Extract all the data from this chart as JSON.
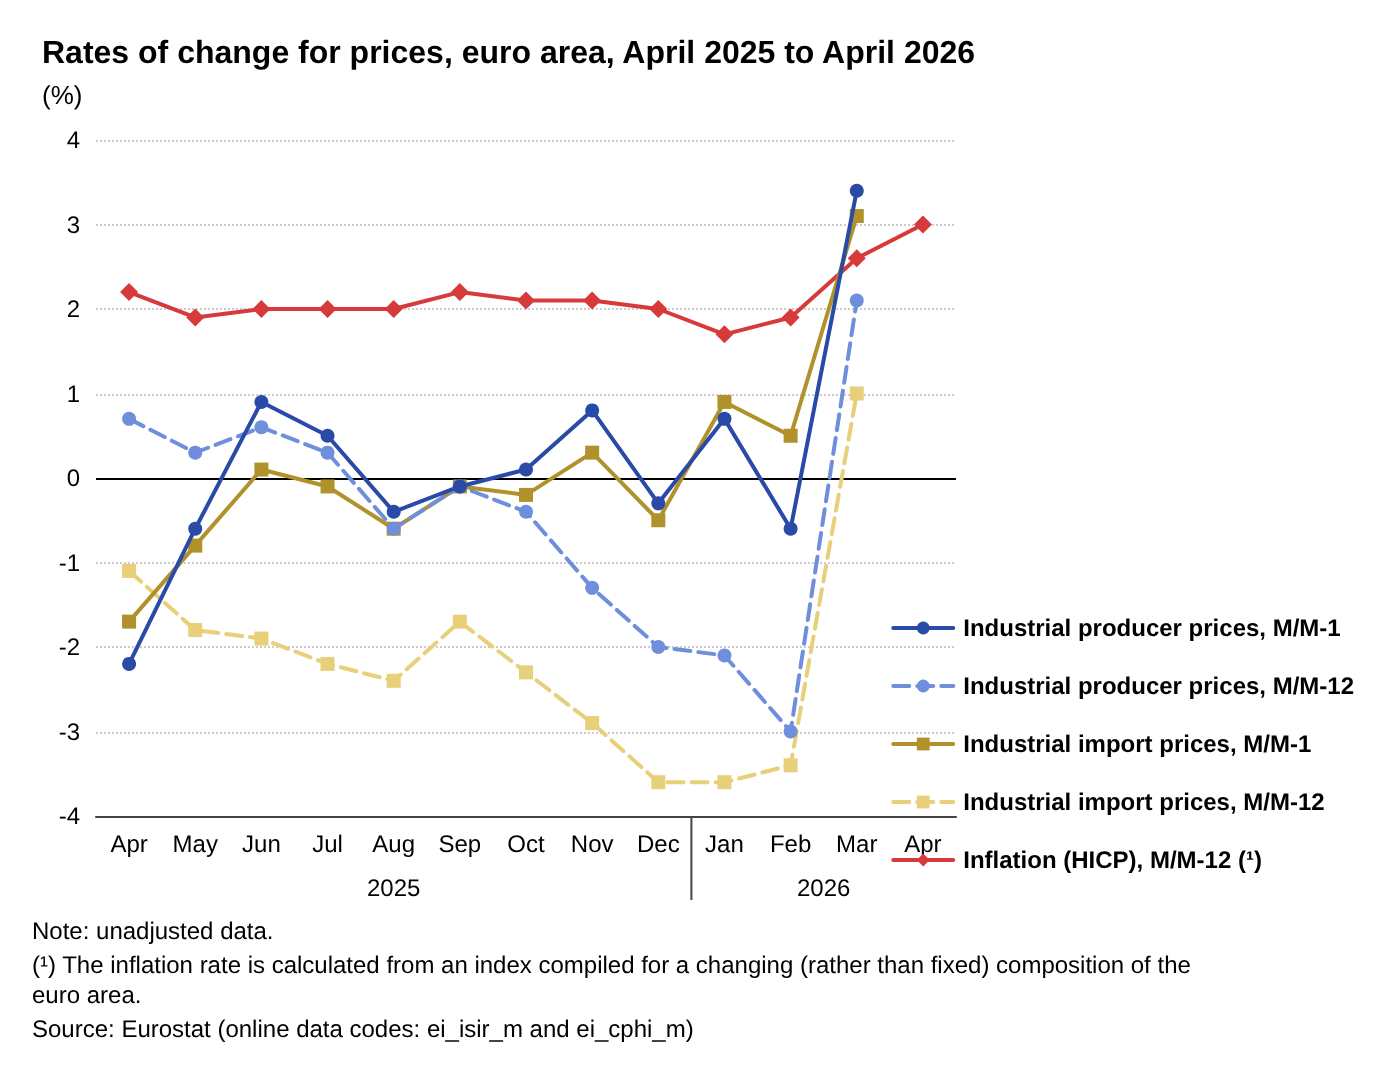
{
  "chart_data": {
    "type": "line",
    "title": "Rates of change for prices, euro area, April 2025 to April 2026",
    "ylabel": "(%)",
    "categories": [
      "Apr",
      "May",
      "Jun",
      "Jul",
      "Aug",
      "Sep",
      "Oct",
      "Nov",
      "Dec",
      "Jan",
      "Feb",
      "Mar",
      "Apr"
    ],
    "series": [
      {
        "name": "Industrial producer prices, M/M-1",
        "color": "#2a4aa8",
        "marker": "circle",
        "line_style": "solid",
        "values": [
          -2.2,
          -0.6,
          0.9,
          0.5,
          -0.4,
          -0.1,
          0.1,
          0.8,
          -0.3,
          0.7,
          -0.6,
          3.4,
          null
        ]
      },
      {
        "name": "Industrial producer prices, M/M-12",
        "color": "#6f8fdc",
        "marker": "circle",
        "line_style": "dashed",
        "values": [
          0.7,
          0.3,
          0.6,
          0.3,
          -0.6,
          -0.1,
          -0.4,
          -1.3,
          -2.0,
          -2.1,
          -3.0,
          2.1,
          null
        ]
      },
      {
        "name": "Industrial import prices, M/M-1",
        "color": "#b0912a",
        "marker": "square",
        "line_style": "solid",
        "values": [
          -1.7,
          -0.8,
          0.1,
          -0.1,
          -0.6,
          -0.1,
          -0.2,
          0.3,
          -0.5,
          0.9,
          0.5,
          3.1,
          null
        ]
      },
      {
        "name": "Industrial import prices, M/M-12",
        "color": "#e8cf7a",
        "marker": "square",
        "line_style": "dashed",
        "values": [
          -1.1,
          -1.8,
          -1.9,
          -2.2,
          -2.4,
          -1.7,
          -2.3,
          -2.9,
          -3.6,
          -3.6,
          -3.4,
          1.0,
          null
        ]
      },
      {
        "name": "Inflation (HICP), M/M-12 (¹)",
        "color": "#d63a3a",
        "marker": "diamond",
        "line_style": "solid",
        "values": [
          2.2,
          1.9,
          2.0,
          2.0,
          2.0,
          2.2,
          2.1,
          2.1,
          2.0,
          1.7,
          1.9,
          2.6,
          3.0
        ]
      }
    ],
    "ylim": [
      -4,
      4
    ],
    "yticks": [
      -4,
      -3,
      -2,
      -1,
      0,
      1,
      2,
      3,
      4
    ],
    "grid": "y",
    "legend": "right",
    "ref_lines": [
      {
        "axis": "y",
        "value": 0,
        "color": "#000000",
        "line_style": "solid"
      }
    ],
    "annotations": [
      "2025",
      "2026",
      "Note: unadjusted data.",
      "(¹) The inflation rate is calculated from an index compiled for a changing (rather than fixed) composition of the euro area.",
      "Source: Eurostat (online data codes: ei_isir_m and ei_cphi_m)"
    ]
  }
}
